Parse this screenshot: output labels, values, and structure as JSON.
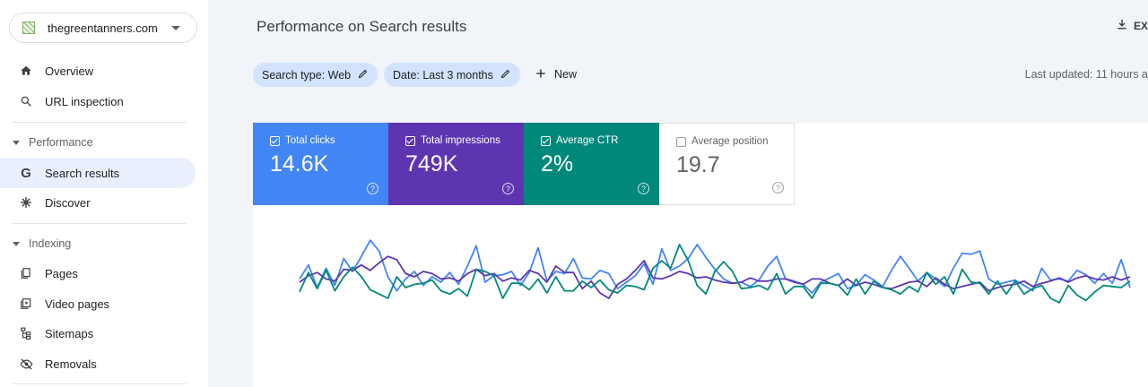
{
  "property": {
    "name": "thegreentanners.com"
  },
  "sidebar": {
    "items": [
      {
        "label": "Overview",
        "icon": "home-icon"
      },
      {
        "label": "URL inspection",
        "icon": "search-icon"
      }
    ],
    "performance": {
      "label": "Performance",
      "items": [
        {
          "label": "Search results",
          "icon": "google-g-icon",
          "active": true
        },
        {
          "label": "Discover",
          "icon": "asterisk-icon"
        }
      ]
    },
    "indexing": {
      "label": "Indexing",
      "items": [
        {
          "label": "Pages",
          "icon": "pages-icon"
        },
        {
          "label": "Video pages",
          "icon": "video-pages-icon"
        },
        {
          "label": "Sitemaps",
          "icon": "sitemap-icon"
        },
        {
          "label": "Removals",
          "icon": "eye-off-icon"
        }
      ]
    }
  },
  "header": {
    "title": "Performance on Search results",
    "export_label": "EX",
    "last_updated": "Last updated: 11 hours a"
  },
  "filters": {
    "search_type": "Search type: Web",
    "date": "Date: Last 3 months",
    "new_label": "New"
  },
  "metrics": {
    "clicks": {
      "label": "Total clicks",
      "value": "14.6K",
      "checked": true,
      "color": "#4285f4"
    },
    "impressions": {
      "label": "Total impressions",
      "value": "749K",
      "checked": true,
      "color": "#5e35b1"
    },
    "ctr": {
      "label": "Average CTR",
      "value": "2%",
      "checked": true,
      "color": "#00897b"
    },
    "position": {
      "label": "Average position",
      "value": "19.7",
      "checked": false
    }
  },
  "chart_data": {
    "type": "line",
    "series": [
      {
        "color": "#4285f4",
        "values": [
          52,
          39,
          60,
          42,
          58,
          33,
          45,
          31,
          16,
          26,
          50,
          63,
          52,
          45,
          58,
          50,
          55,
          46,
          57,
          40,
          21,
          55,
          49,
          48,
          45,
          58,
          46,
          23,
          54,
          45,
          47,
          33,
          51,
          52,
          44,
          47,
          61,
          55,
          49,
          38,
          57,
          24,
          44,
          40,
          33,
          20,
          32,
          43,
          52,
          56,
          55,
          59,
          53,
          40,
          31,
          52,
          54,
          57,
          65,
          55,
          51,
          47,
          61,
          58,
          48,
          53,
          59,
          44,
          31,
          42,
          54,
          46,
          52,
          59,
          42,
          28,
          29,
          26,
          52,
          57,
          55,
          53,
          58,
          63,
          42,
          53,
          52,
          54,
          44,
          48,
          56,
          47,
          56,
          34,
          60
        ]
      },
      {
        "color": "#5e35b1",
        "values": [
          55,
          49,
          46,
          52,
          54,
          43,
          44,
          39,
          44,
          37,
          31,
          34,
          47,
          50,
          45,
          47,
          52,
          51,
          54,
          47,
          43,
          49,
          47,
          54,
          51,
          53,
          44,
          47,
          55,
          40,
          46,
          46,
          61,
          54,
          65,
          70,
          57,
          52,
          44,
          35,
          51,
          52,
          49,
          45,
          47,
          51,
          50,
          53,
          55,
          56,
          55,
          51,
          54,
          54,
          52,
          52,
          55,
          57,
          52,
          52,
          56,
          58,
          52,
          58,
          55,
          57,
          60,
          61,
          58,
          55,
          54,
          59,
          51,
          57,
          61,
          59,
          57,
          55,
          63,
          60,
          58,
          57,
          54,
          59,
          56,
          54,
          51,
          55,
          51,
          49,
          52,
          53,
          50,
          53,
          50
        ]
      },
      {
        "color": "#00897b",
        "values": [
          64,
          46,
          61,
          44,
          63,
          50,
          41,
          50,
          62,
          66,
          70,
          50,
          60,
          57,
          56,
          53,
          63,
          66,
          61,
          68,
          43,
          45,
          49,
          70,
          56,
          56,
          62,
          52,
          65,
          50,
          63,
          63,
          54,
          60,
          53,
          62,
          65,
          58,
          59,
          62,
          42,
          35,
          42,
          20,
          35,
          58,
          66,
          45,
          36,
          45,
          61,
          60,
          58,
          62,
          47,
          66,
          59,
          59,
          70,
          56,
          56,
          58,
          67,
          52,
          66,
          54,
          60,
          62,
          66,
          59,
          64,
          46,
          57,
          50,
          66,
          43,
          55,
          56,
          66,
          54,
          66,
          54,
          66,
          61,
          58,
          70,
          74,
          58,
          67,
          72,
          64,
          58,
          59,
          60,
          54
        ]
      }
    ]
  }
}
